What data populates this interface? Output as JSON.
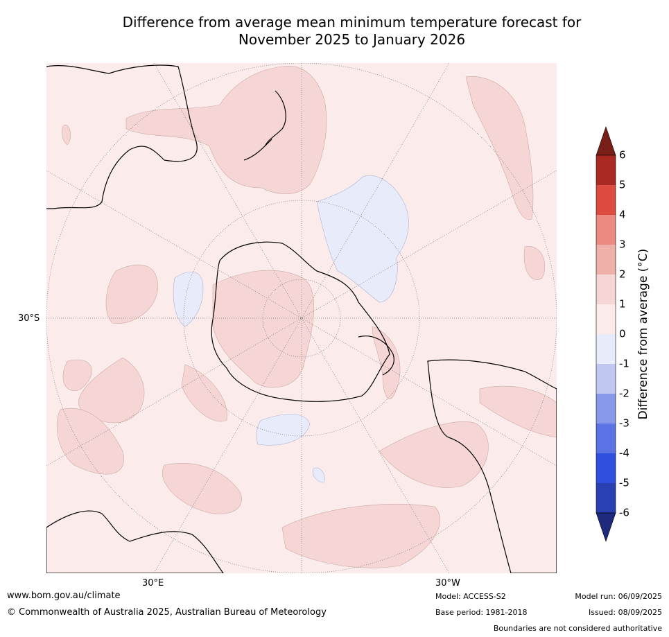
{
  "title_line1": "Difference from average mean minimum temperature forecast for",
  "title_line2": "November 2025 to January 2026",
  "map": {
    "latitude_label": "30°S",
    "longitude_labels": [
      "30°E",
      "30°W"
    ],
    "colors": {
      "ocean_neutral": "#fbeceb",
      "positive_0_1": "#fbeceb",
      "positive_1_2": "#f5d6d4",
      "negative_0_1": "#e8ebfa",
      "coastline": "#000000",
      "graticule": "#777777"
    }
  },
  "colorbar": {
    "label": "Difference from average (°C)",
    "ticks": [
      "6",
      "5",
      "4",
      "3",
      "2",
      "1",
      "0",
      "-1",
      "-2",
      "-3",
      "-4",
      "-5",
      "-6"
    ],
    "colors": [
      "#a92a22",
      "#dc4b40",
      "#eb8a80",
      "#eeb0a9",
      "#f5d6d4",
      "#fbeceb",
      "#e8ebfa",
      "#c0c8f2",
      "#8898ea",
      "#5a72e2",
      "#2f4fdf",
      "#2a3fb0"
    ],
    "top_arrow_color": "#7a1f18",
    "bottom_arrow_color": "#1e2a7c"
  },
  "footer": {
    "website": "www.bom.gov.au/climate",
    "copyright": "© Commonwealth of Australia 2025, Australian Bureau of Meteorology",
    "model": "Model: ACCESS-S2",
    "base_period": "Base period: 1981-2018",
    "model_run": "Model run: 06/09/2025",
    "issued": "Issued: 08/09/2025",
    "disclaimer": "Boundaries are not considered authoritative"
  }
}
